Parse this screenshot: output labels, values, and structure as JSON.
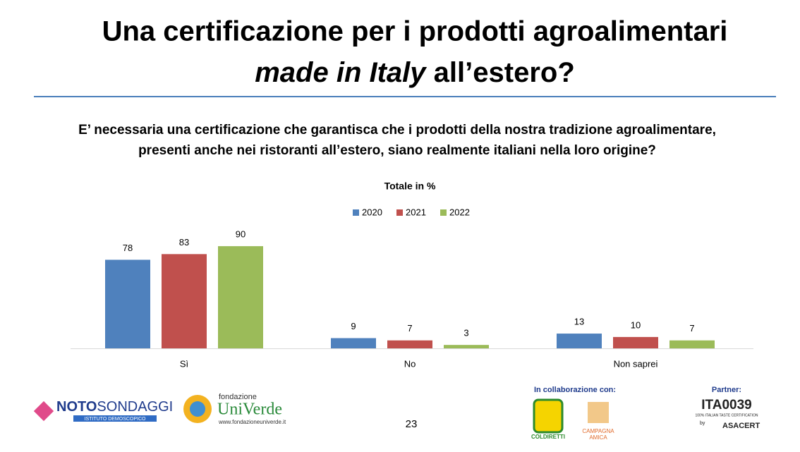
{
  "header": {
    "title_line1": "Una certificazione per i prodotti agroalimentari",
    "title_italic": "made in Italy",
    "title_rest": "all’estero?"
  },
  "question": [
    "E’ necessaria una certificazione che garantisca che i prodotti della nostra tradizione agroalimentare,",
    "presenti anche nei ristoranti all’estero, siano realmente italiani nella loro origine?"
  ],
  "chart_data": {
    "type": "bar",
    "title": "Totale in %",
    "categories": [
      "Sì",
      "No",
      "Non saprei"
    ],
    "series": [
      {
        "name": "2020",
        "color": "#4f81bd",
        "values": [
          78,
          9,
          13
        ]
      },
      {
        "name": "2021",
        "color": "#c0504d",
        "values": [
          83,
          7,
          10
        ]
      },
      {
        "name": "2022",
        "color": "#9bbb59",
        "values": [
          90,
          3,
          7
        ]
      }
    ],
    "legend": "top"
  },
  "footer": {
    "page": "23",
    "noto": "NOTO",
    "sondaggi": "SONDAGGI",
    "noto_sub": "ISTITUTO DEMOSCOPICO",
    "uv_fondazione": "fondazione",
    "uv_name": "UniVerde",
    "uv_url": "www.fondazioneuniverde.it",
    "collab": "In collaborazione con:",
    "coldiretti": "COLDIRETTI",
    "campagna": "CAMPAGNA",
    "amica": "AMICA",
    "partner": "Partner:",
    "ita": "ITA0039",
    "ita_sub": "100% ITALIAN TASTE CERTIFICATION",
    "by": "by",
    "asacert": "ASACERT"
  }
}
